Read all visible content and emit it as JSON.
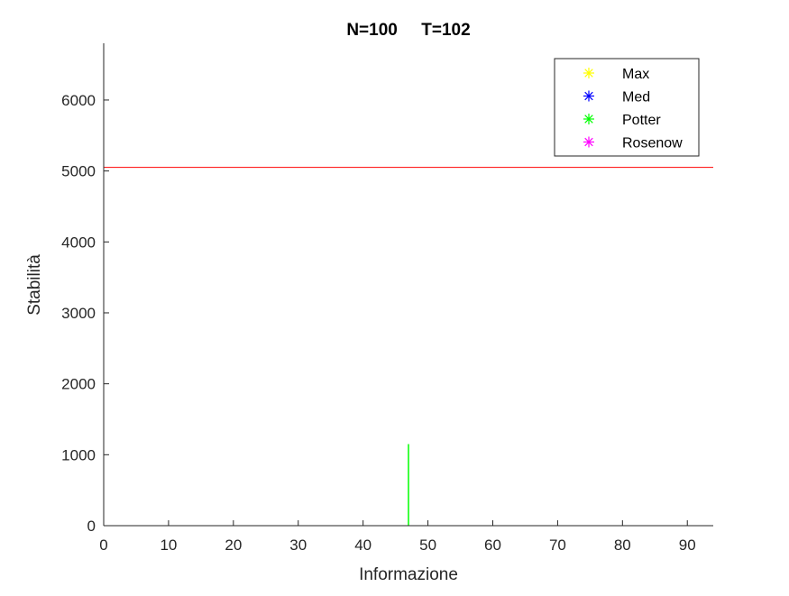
{
  "chart_data": {
    "type": "line",
    "title": "N=100     T=102",
    "xlabel": "Informazione",
    "ylabel": "Stabilità",
    "xlim": [
      0,
      94
    ],
    "ylim": [
      0,
      6800
    ],
    "xticks": [
      0,
      10,
      20,
      30,
      40,
      50,
      60,
      70,
      80,
      90
    ],
    "yticks": [
      0,
      1000,
      2000,
      3000,
      4000,
      5000,
      6000
    ],
    "grid": false,
    "legend_position": "top-right",
    "legend": [
      {
        "name": "Max",
        "color": "#ffff00",
        "marker": "asterisk"
      },
      {
        "name": "Med",
        "color": "#0000ff",
        "marker": "asterisk"
      },
      {
        "name": "Potter",
        "color": "#00ff00",
        "marker": "asterisk"
      },
      {
        "name": "Rosenow",
        "color": "#ff00ff",
        "marker": "asterisk"
      }
    ],
    "reference_lines": [
      {
        "orientation": "horizontal",
        "y": 5050,
        "color": "#ff0000"
      }
    ],
    "segments": [
      {
        "x": [
          47,
          47
        ],
        "y": [
          0,
          1150
        ],
        "color": "#00ff00"
      }
    ]
  }
}
